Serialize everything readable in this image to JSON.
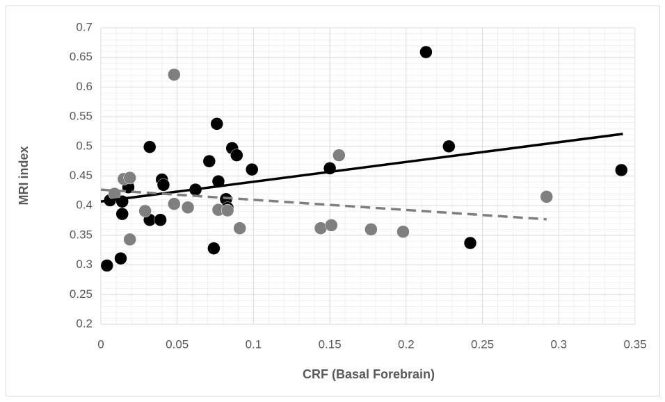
{
  "chart_data": {
    "type": "scatter",
    "x_label": "CRF (Basal Forebrain)",
    "y_label": "MRI index",
    "xlim": [
      0,
      0.35
    ],
    "xticks": [
      0,
      0.05,
      0.1,
      0.15,
      0.2,
      0.25,
      0.3,
      0.35
    ],
    "ylim": [
      0.2,
      0.7
    ],
    "yticks": [
      0.2,
      0.25,
      0.3,
      0.35,
      0.4,
      0.45,
      0.5,
      0.55,
      0.6,
      0.65,
      0.7
    ],
    "grid": true,
    "minor_grid": true,
    "series": [
      {
        "color": "#000000",
        "x": [
          0.004,
          0.013,
          0.006,
          0.014,
          0.014,
          0.018,
          0.032,
          0.032,
          0.039,
          0.04,
          0.041,
          0.062,
          0.071,
          0.074,
          0.076,
          0.077,
          0.082,
          0.083,
          0.086,
          0.089,
          0.099,
          0.15,
          0.213,
          0.228,
          0.242,
          0.341
        ],
        "y": [
          0.299,
          0.311,
          0.409,
          0.386,
          0.407,
          0.431,
          0.499,
          0.376,
          0.376,
          0.444,
          0.435,
          0.427,
          0.475,
          0.328,
          0.538,
          0.441,
          0.411,
          0.396,
          0.497,
          0.485,
          0.461,
          0.463,
          0.659,
          0.5,
          0.337,
          0.46
        ],
        "trendline": {
          "dash": false,
          "x": [
            0,
            0.342
          ],
          "y": [
            0.407,
            0.521
          ]
        }
      },
      {
        "color": "#7f7f7f",
        "x": [
          0.009,
          0.015,
          0.019,
          0.019,
          0.029,
          0.048,
          0.048,
          0.057,
          0.077,
          0.083,
          0.091,
          0.144,
          0.151,
          0.156,
          0.177,
          0.198,
          0.292
        ],
        "y": [
          0.42,
          0.445,
          0.447,
          0.343,
          0.391,
          0.621,
          0.403,
          0.397,
          0.393,
          0.392,
          0.362,
          0.362,
          0.367,
          0.485,
          0.36,
          0.356,
          0.415
        ],
        "trendline": {
          "dash": true,
          "x": [
            0,
            0.292
          ],
          "y": [
            0.427,
            0.377
          ]
        }
      }
    ]
  }
}
